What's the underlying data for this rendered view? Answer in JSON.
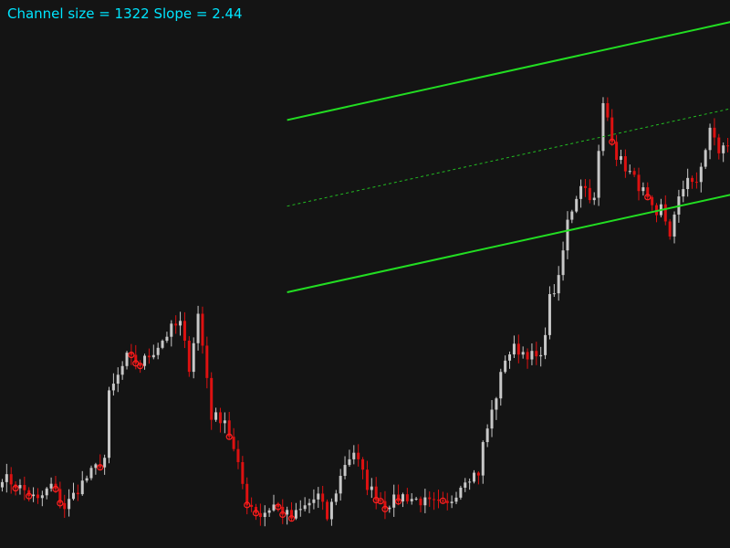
{
  "header": {
    "info_text": "Channel size = 1322 Slope = 2.44"
  },
  "colors": {
    "background": "#141414",
    "channel_line": "#22dd22",
    "mid_line": "#22bb22",
    "bull_candle": "#c8c8c8",
    "bear_candle": "#dd1111",
    "marker": "#ff2222",
    "info_text": "#00e5ff"
  },
  "chart_data": {
    "type": "candlestick",
    "title": "",
    "channel_size": 1322,
    "slope": 2.44,
    "channel_lines": [
      {
        "role": "upper",
        "style": "solid",
        "start": {
          "bar": 64,
          "price": 30280
        },
        "end": {
          "bar": 178,
          "price": 31140
        }
      },
      {
        "role": "middle",
        "style": "dotted",
        "start": {
          "bar": 64,
          "price": 29620
        },
        "end": {
          "bar": 200,
          "price": 30640
        }
      },
      {
        "role": "lower",
        "style": "solid",
        "start": {
          "bar": 64,
          "price": 28960
        },
        "end": {
          "bar": 200,
          "price": 29980
        }
      }
    ],
    "price_path": [
      [
        0,
        27550
      ],
      [
        5,
        27440
      ],
      [
        8,
        27360
      ],
      [
        11,
        27480
      ],
      [
        14,
        27310
      ],
      [
        18,
        27500
      ],
      [
        23,
        27690
      ],
      [
        24,
        28170
      ],
      [
        28,
        28460
      ],
      [
        31,
        28410
      ],
      [
        34,
        28510
      ],
      [
        38,
        28680
      ],
      [
        40,
        28720
      ],
      [
        42,
        28390
      ],
      [
        44,
        28790
      ],
      [
        46,
        28310
      ],
      [
        47,
        28010
      ],
      [
        50,
        27990
      ],
      [
        53,
        27620
      ],
      [
        55,
        27360
      ],
      [
        58,
        27250
      ],
      [
        61,
        27330
      ],
      [
        65,
        27230
      ],
      [
        71,
        27400
      ],
      [
        73,
        27230
      ],
      [
        77,
        27650
      ],
      [
        79,
        27740
      ],
      [
        82,
        27480
      ],
      [
        86,
        27330
      ],
      [
        90,
        27400
      ],
      [
        96,
        27340
      ],
      [
        100,
        27320
      ],
      [
        104,
        27540
      ],
      [
        107,
        27580
      ],
      [
        108,
        27790
      ],
      [
        111,
        28170
      ],
      [
        113,
        28460
      ],
      [
        115,
        28530
      ],
      [
        118,
        28490
      ],
      [
        121,
        28440
      ],
      [
        123,
        28910
      ],
      [
        125,
        29050
      ],
      [
        127,
        29500
      ],
      [
        130,
        29800
      ],
      [
        133,
        29660
      ],
      [
        135,
        30390
      ],
      [
        136,
        30300
      ],
      [
        138,
        30010
      ],
      [
        140,
        29920
      ],
      [
        144,
        29730
      ],
      [
        147,
        29510
      ],
      [
        148,
        29610
      ],
      [
        150,
        29410
      ],
      [
        152,
        29660
      ],
      [
        154,
        29860
      ],
      [
        156,
        29770
      ],
      [
        159,
        30210
      ],
      [
        161,
        30040
      ],
      [
        163,
        30090
      ]
    ],
    "candle_count": 164,
    "price_range": [
      27000,
      31200
    ],
    "grid": false,
    "legend": "none"
  }
}
